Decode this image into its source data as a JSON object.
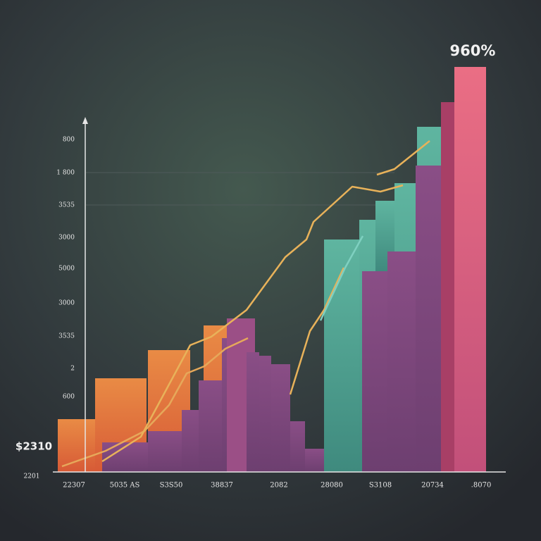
{
  "labels": {
    "headline": "960%",
    "left_value": "$2310",
    "origin_label": "2201",
    "y_axis": [
      "800",
      "1 800",
      "3535",
      "3000",
      "5000",
      "3000",
      "3535",
      "2",
      "600"
    ],
    "x_axis": [
      "22307",
      "5035 AS",
      "S3S50",
      "38837",
      "2082",
      "28080",
      "S3108",
      "20734",
      ".8070"
    ]
  }
}
